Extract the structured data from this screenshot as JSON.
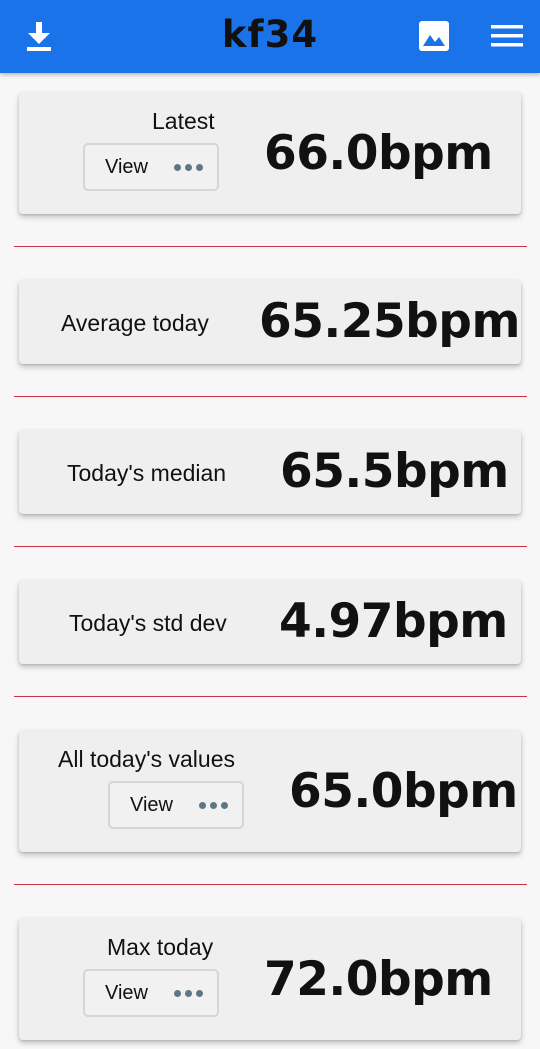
{
  "appbar": {
    "title": "kf34",
    "download_icon": "download-icon",
    "image_icon": "image-icon",
    "menu_icon": "menu-icon",
    "color": "#1a73e8"
  },
  "cards": [
    {
      "label": "Latest",
      "value": "66.0bpm",
      "button": "View"
    },
    {
      "label": "Average today",
      "value": "65.25bpm"
    },
    {
      "label": "Today's median",
      "value": "65.5bpm"
    },
    {
      "label": "Today's std dev",
      "value": "4.97bpm"
    },
    {
      "label": "All today's values",
      "value": "65.0bpm",
      "button": "View"
    },
    {
      "label": "Max today",
      "value": "72.0bpm",
      "button": "View"
    }
  ],
  "divider_color": "#c8343f"
}
